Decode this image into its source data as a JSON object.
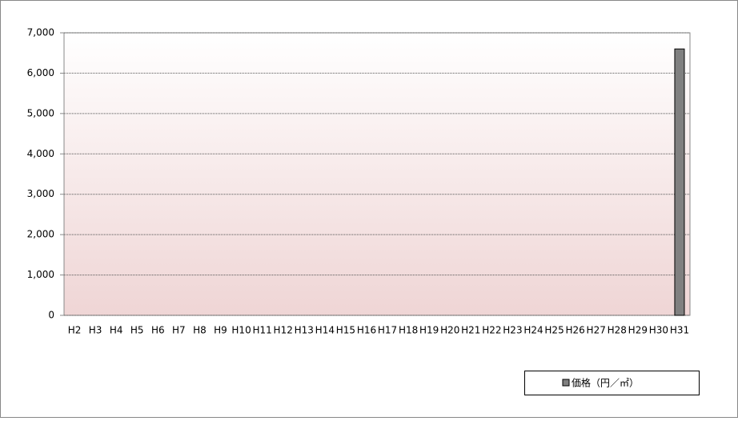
{
  "chart_data": {
    "type": "bar",
    "categories": [
      "H2",
      "H3",
      "H4",
      "H5",
      "H6",
      "H7",
      "H8",
      "H9",
      "H10",
      "H11",
      "H12",
      "H13",
      "H14",
      "H15",
      "H16",
      "H17",
      "H18",
      "H19",
      "H20",
      "H21",
      "H22",
      "H23",
      "H24",
      "H25",
      "H26",
      "H27",
      "H28",
      "H29",
      "H30",
      "H31"
    ],
    "series": [
      {
        "name": "価格（円／㎡）",
        "color": "#808080",
        "values": [
          null,
          null,
          null,
          null,
          null,
          null,
          null,
          null,
          null,
          null,
          null,
          null,
          null,
          null,
          null,
          null,
          null,
          null,
          null,
          null,
          null,
          null,
          null,
          null,
          null,
          null,
          null,
          null,
          null,
          6600
        ]
      }
    ],
    "ylim": [
      0,
      7000
    ],
    "yticks": [
      0,
      {
        "value": 1000,
        "label": "1,000"
      },
      {
        "value": 2000,
        "label": "2,000"
      },
      {
        "value": 3000,
        "label": "3,000"
      },
      {
        "value": 4000,
        "label": "4,000"
      },
      {
        "value": 5000,
        "label": "5,000"
      },
      {
        "value": 6000,
        "label": "6,000"
      },
      {
        "value": 7000,
        "label": "7,000"
      }
    ],
    "grid": true,
    "legend": "bottom-right"
  }
}
